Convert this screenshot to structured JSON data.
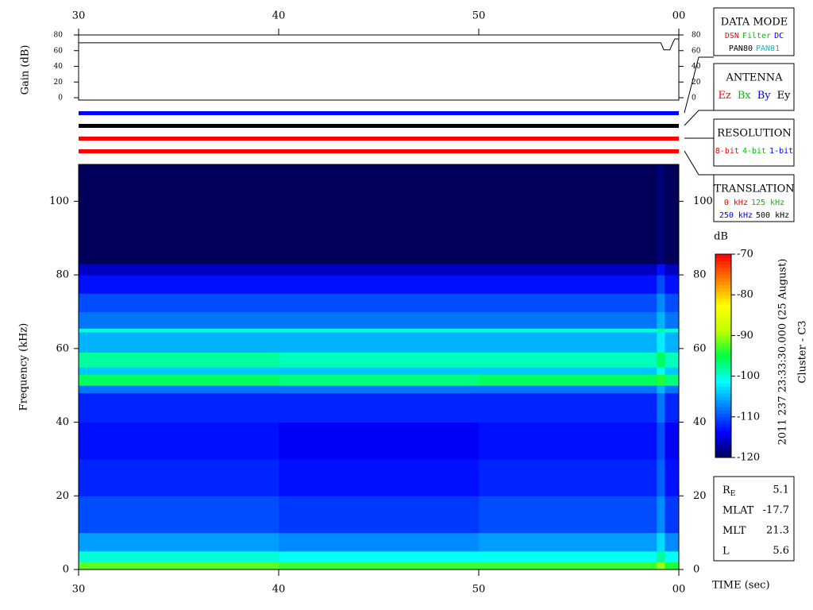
{
  "chart_data": [
    {
      "type": "line",
      "ylabel": "Gain (dB)",
      "xlim": [
        30,
        60
      ],
      "xticks": [
        30,
        40,
        50,
        {
          "value": 60,
          "label": "00"
        }
      ],
      "ylim": [
        -3,
        80
      ],
      "yticks": [
        0,
        20,
        40,
        60,
        80
      ],
      "series": [
        {
          "color": "#000000",
          "x": [
            30,
            59.1,
            59.25,
            59.55,
            59.7,
            59.8,
            60
          ],
          "values": [
            70,
            70,
            61,
            61,
            70,
            75,
            75
          ]
        }
      ]
    },
    {
      "type": "heatmap",
      "xlabel": "TIME (sec)",
      "ylabel": "Frequency (kHz)",
      "xlim": [
        30,
        60
      ],
      "xticks": [
        30,
        40,
        50,
        {
          "value": 60,
          "label": "00"
        }
      ],
      "ylim": [
        0,
        110
      ],
      "yticks": [
        0,
        20,
        40,
        60,
        80,
        100
      ],
      "x_edges": [
        30,
        40,
        50,
        58.9,
        59.3,
        60
      ],
      "y_edges": [
        0,
        2,
        5,
        10,
        20,
        30,
        40,
        48,
        50,
        53,
        55,
        59,
        64.5,
        65.5,
        70,
        75,
        80,
        83,
        110
      ],
      "z": [
        [
          -92,
          -93,
          -93,
          -90,
          -94
        ],
        [
          -100,
          -101,
          -101,
          -98,
          -101
        ],
        [
          -106,
          -107,
          -106,
          -103,
          -107
        ],
        [
          -110,
          -111,
          -110,
          -107,
          -111
        ],
        [
          -112,
          -113,
          -112,
          -109,
          -113
        ],
        [
          -113,
          -114,
          -113,
          -110,
          -114
        ],
        [
          -112,
          -112,
          -112,
          -108,
          -112
        ],
        [
          -108,
          -108,
          -108,
          -105,
          -108
        ],
        [
          -96,
          -97,
          -96,
          -94,
          -97
        ],
        [
          -104,
          -104,
          -104,
          -101,
          -104
        ],
        [
          -98,
          -99,
          -99,
          -96,
          -99
        ],
        [
          -105,
          -105,
          -105,
          -102,
          -105
        ],
        [
          -100,
          -100,
          -100,
          -98,
          -100
        ],
        [
          -108,
          -108,
          -108,
          -105,
          -108
        ],
        [
          -110,
          -110,
          -110,
          -107,
          -110
        ],
        [
          -113,
          -113,
          -113,
          -110,
          -113
        ],
        [
          -116,
          -116,
          -116,
          -113,
          -116
        ],
        [
          -120,
          -120,
          -120,
          -119,
          -120
        ]
      ],
      "zlim": [
        -120,
        -70
      ],
      "zticks": [
        -70,
        -80,
        -90,
        -100,
        -110,
        -120
      ],
      "zlabel": "dB",
      "colorscale": [
        "#00005a",
        "#0000ff",
        "#0080ff",
        "#00ffff",
        "#00ff40",
        "#c0ff00",
        "#ffff00",
        "#ff8000",
        "#ff0000"
      ]
    }
  ],
  "panels": [
    {
      "title": "DATA MODE",
      "rows": [
        [
          {
            "text": "DSN",
            "color": "#ff0000"
          },
          {
            "text": "Filter",
            "color": "#00c000"
          },
          {
            "text": "DC",
            "color": "#0000ff"
          }
        ],
        [
          {
            "text": "PAN80",
            "color": "#000000"
          },
          {
            "text": "PAN81",
            "color": "#00c0c0"
          }
        ]
      ]
    },
    {
      "title": "ANTENNA",
      "rows": [
        [
          {
            "text": "Ez",
            "color": "#ff0000"
          },
          {
            "text": "Bx",
            "color": "#00c000"
          },
          {
            "text": "By",
            "color": "#0000ff"
          },
          {
            "text": "Ey",
            "color": "#000000"
          }
        ]
      ]
    },
    {
      "title": "RESOLUTION",
      "rows": [
        [
          {
            "text": "8-bit",
            "color": "#ff0000"
          },
          {
            "text": "4-bit",
            "color": "#00c000"
          },
          {
            "text": "1-bit",
            "color": "#0000ff"
          }
        ]
      ]
    },
    {
      "title": "TRANSLATION",
      "rows": [
        [
          {
            "text": "0 kHz",
            "color": "#ff0000"
          },
          {
            "text": "125 kHz",
            "color": "#00c000"
          }
        ],
        [
          {
            "text": "250 kHz",
            "color": "#0000ff"
          },
          {
            "text": "500 kHz",
            "color": "#000000"
          }
        ]
      ]
    }
  ],
  "mode_bars": [
    "#0000ff",
    "#000000",
    "#ff0000",
    "#ff0000"
  ],
  "orbit": [
    {
      "label": "R",
      "subscript": "E",
      "value": 5.1
    },
    {
      "label": "MLAT",
      "value": -17.7
    },
    {
      "label": "MLT",
      "value": 21.3
    },
    {
      "label": "L",
      "value": 5.6
    }
  ],
  "timestamp": "2011 237 23:33:30.000 (25 August)",
  "spacecraft": "Cluster - C3"
}
